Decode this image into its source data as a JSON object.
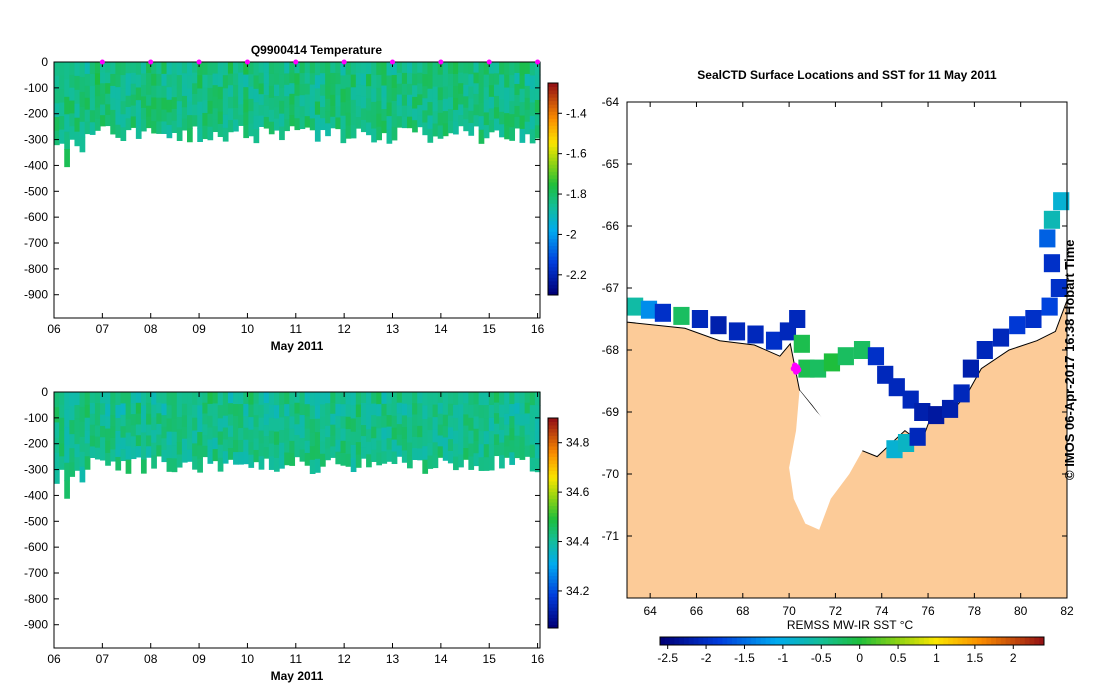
{
  "chart_data": [
    {
      "type": "heatmap",
      "title": "Q9900414  Temperature",
      "xlabel": "May 2011",
      "ylabel": "",
      "x_ticks": [
        "06",
        "07",
        "08",
        "09",
        "10",
        "11",
        "12",
        "13",
        "14",
        "15",
        "16"
      ],
      "y_ticks": [
        "0",
        "-100",
        "-200",
        "-300",
        "-400",
        "-500",
        "-600",
        "-700",
        "-800",
        "-900"
      ],
      "xlim": [
        6.0,
        16.05
      ],
      "ylim": [
        -990,
        0
      ],
      "colorbar": {
        "ticks": [
          "-1.4",
          "-1.6",
          "-1.8",
          "-2",
          "-2.2"
        ],
        "tick_values": [
          -1.4,
          -1.6,
          -1.8,
          -2.0,
          -2.2
        ],
        "range": [
          -2.3,
          -1.25
        ]
      },
      "typical_value": -1.83,
      "surface_markers_day": [
        7,
        8,
        9,
        10,
        11,
        12,
        13,
        14,
        15,
        16
      ]
    },
    {
      "type": "heatmap",
      "title": "",
      "xlabel": "May 2011",
      "ylabel": "",
      "x_ticks": [
        "06",
        "07",
        "08",
        "09",
        "10",
        "11",
        "12",
        "13",
        "14",
        "15",
        "16"
      ],
      "y_ticks": [
        "0",
        "-100",
        "-200",
        "-300",
        "-400",
        "-500",
        "-600",
        "-700",
        "-800",
        "-900"
      ],
      "xlim": [
        6.0,
        16.05
      ],
      "ylim": [
        -990,
        0
      ],
      "colorbar": {
        "ticks": [
          "34.8",
          "34.6",
          "34.4",
          "34.2"
        ],
        "tick_values": [
          34.8,
          34.6,
          34.4,
          34.2
        ],
        "range": [
          34.05,
          34.9
        ]
      },
      "typical_value": 34.42
    },
    {
      "type": "heatmap",
      "title": "SealCTD Surface Locations and SST for 11 May 2011",
      "xlabel": "",
      "ylabel": "",
      "x_ticks": [
        "64",
        "66",
        "68",
        "70",
        "72",
        "74",
        "76",
        "78",
        "80",
        "82"
      ],
      "y_ticks": [
        "-64",
        "-65",
        "-66",
        "-67",
        "-68",
        "-69",
        "-70",
        "-71"
      ],
      "xlim": [
        63,
        82
      ],
      "ylim": [
        -72,
        -64
      ],
      "colorbar": {
        "label": "REMSS MW-IR SST °C",
        "ticks": [
          "-2.5",
          "-2",
          "-1.5",
          "-1",
          "-0.5",
          "0",
          "0.5",
          "1",
          "1.5",
          "2"
        ],
        "tick_values": [
          -2.5,
          -2,
          -1.5,
          -1,
          -0.5,
          0,
          0.5,
          1,
          1.5,
          2
        ],
        "range": [
          -2.6,
          2.4
        ]
      },
      "track_points": [
        [
          70.2,
          -68.3
        ],
        [
          70.25,
          -68.25
        ],
        [
          70.3,
          -68.35
        ],
        [
          70.35,
          -68.28
        ],
        [
          70.4,
          -68.32
        ]
      ]
    }
  ],
  "credit": "© IMOS 06-Apr-2017 16:38 Hobart Time",
  "colors": {
    "land": "#fccb98",
    "marker": "#ff00ff",
    "ice": "#ffffff"
  }
}
